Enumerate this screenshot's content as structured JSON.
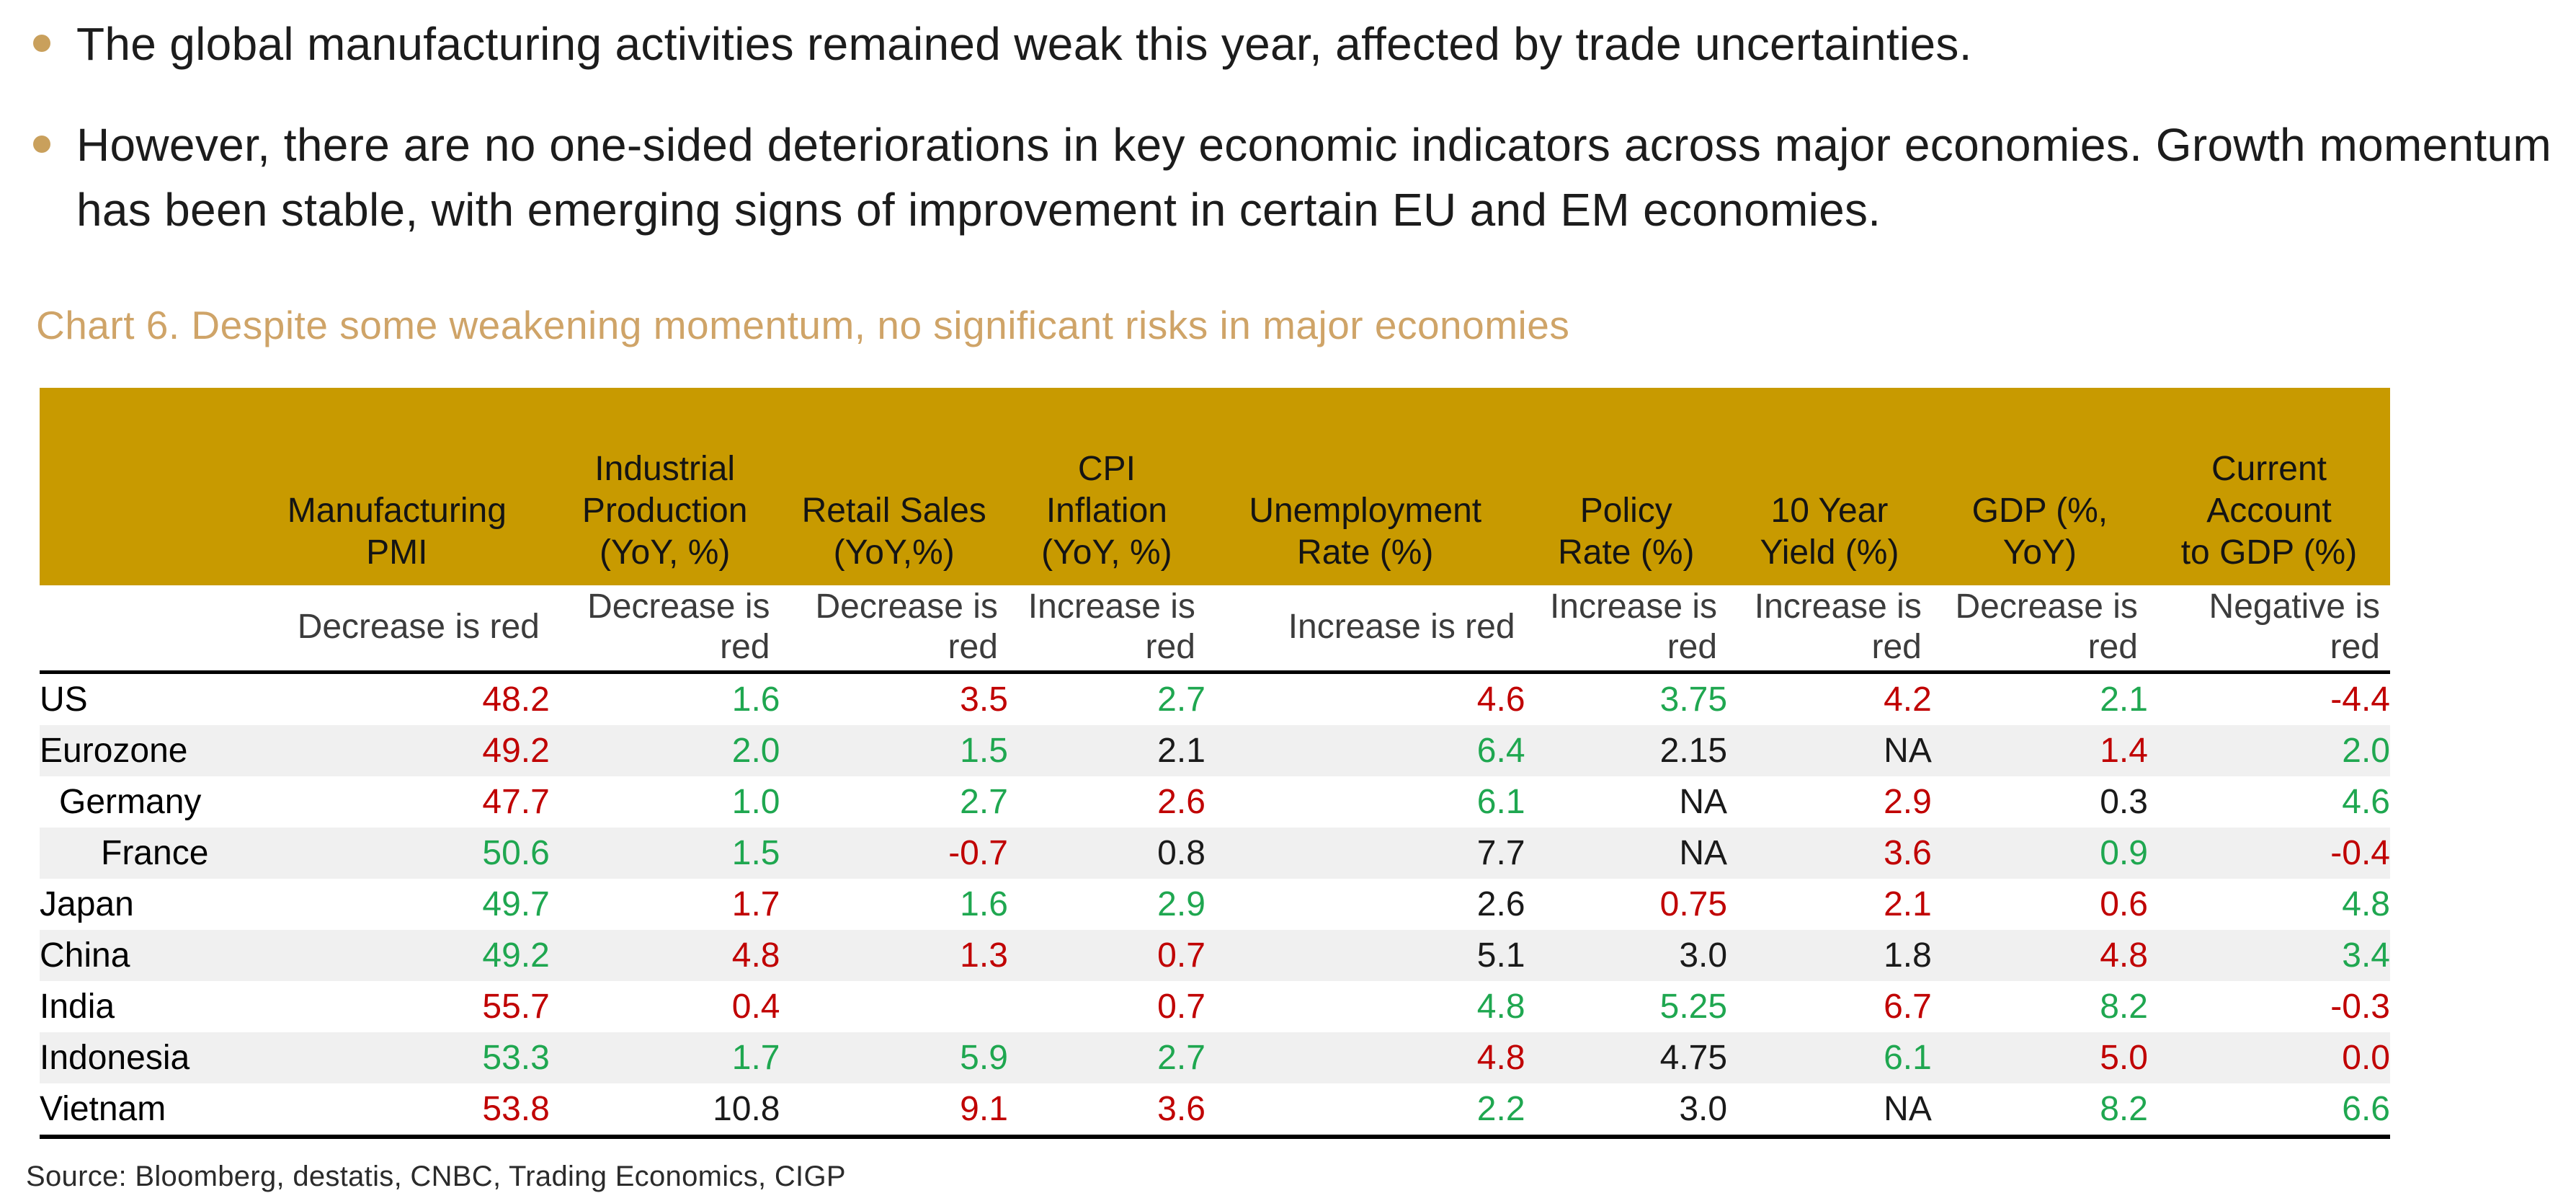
{
  "colors": {
    "red": "#C00000",
    "green": "#1FA750",
    "gold": "#C89A00",
    "tan_title": "#CFA468",
    "tan_bullet": "#C9A05C",
    "stripe": "#F0F0F0"
  },
  "bullets": [
    "The global manufacturing activities remained weak this year, affected by trade uncertainties.",
    "However, there are no one-sided deteriorations in key economic indicators across major economies. Growth momentum has been stable, with emerging signs of improvement in certain EU and EM economies."
  ],
  "chart_title": "Chart 6. Despite some weakening momentum, no significant risks in major economies",
  "source": "Source: Bloomberg, destatis, CNBC, Trading Economics, CIGP",
  "table": {
    "columns": [
      {
        "header": "",
        "sub": ""
      },
      {
        "header": "Manufacturing\nPMI",
        "sub": "Decrease is red"
      },
      {
        "header": "Industrial\nProduction\n(YoY, %)",
        "sub": "Decrease is\nred"
      },
      {
        "header": "Retail Sales\n(YoY,%)",
        "sub": "Decrease is\nred"
      },
      {
        "header": "CPI\nInflation\n(YoY, %)",
        "sub": "Increase is\nred"
      },
      {
        "header": "Unemployment\nRate (%)",
        "sub": "Increase is red"
      },
      {
        "header": "Policy\nRate (%)",
        "sub": "Increase is\nred"
      },
      {
        "header": "10 Year\nYield (%)",
        "sub": "Increase is\nred"
      },
      {
        "header": "GDP (%,\nYoY)",
        "sub": "Decrease is\nred"
      },
      {
        "header": "Current\nAccount\nto GDP (%)",
        "sub": "Negative is\nred"
      }
    ],
    "rows": [
      {
        "name": "US",
        "indent": 0,
        "stripe": false,
        "values": [
          [
            "48.2",
            "r"
          ],
          [
            "1.6",
            "g"
          ],
          [
            "3.5",
            "r"
          ],
          [
            "2.7",
            "g"
          ],
          [
            "4.6",
            "r"
          ],
          [
            "3.75",
            "g"
          ],
          [
            "4.2",
            "r"
          ],
          [
            "2.1",
            "g"
          ],
          [
            "-4.4",
            "r"
          ]
        ]
      },
      {
        "name": "Eurozone",
        "indent": 0,
        "stripe": true,
        "values": [
          [
            "49.2",
            "r"
          ],
          [
            "2.0",
            "g"
          ],
          [
            "1.5",
            "g"
          ],
          [
            "2.1",
            "k"
          ],
          [
            "6.4",
            "g"
          ],
          [
            "2.15",
            "k"
          ],
          [
            "NA",
            "k"
          ],
          [
            "1.4",
            "r"
          ],
          [
            "2.0",
            "g"
          ]
        ]
      },
      {
        "name": "Germany",
        "indent": 1,
        "stripe": false,
        "values": [
          [
            "47.7",
            "r"
          ],
          [
            "1.0",
            "g"
          ],
          [
            "2.7",
            "g"
          ],
          [
            "2.6",
            "r"
          ],
          [
            "6.1",
            "g"
          ],
          [
            "NA",
            "k"
          ],
          [
            "2.9",
            "r"
          ],
          [
            "0.3",
            "k"
          ],
          [
            "4.6",
            "g"
          ]
        ]
      },
      {
        "name": "France",
        "indent": 2,
        "stripe": true,
        "values": [
          [
            "50.6",
            "g"
          ],
          [
            "1.5",
            "g"
          ],
          [
            "-0.7",
            "r"
          ],
          [
            "0.8",
            "k"
          ],
          [
            "7.7",
            "k"
          ],
          [
            "NA",
            "k"
          ],
          [
            "3.6",
            "r"
          ],
          [
            "0.9",
            "g"
          ],
          [
            "-0.4",
            "r"
          ]
        ]
      },
      {
        "name": "Japan",
        "indent": 0,
        "stripe": false,
        "values": [
          [
            "49.7",
            "g"
          ],
          [
            "1.7",
            "r"
          ],
          [
            "1.6",
            "g"
          ],
          [
            "2.9",
            "g"
          ],
          [
            "2.6",
            "k"
          ],
          [
            "0.75",
            "r"
          ],
          [
            "2.1",
            "r"
          ],
          [
            "0.6",
            "r"
          ],
          [
            "4.8",
            "g"
          ]
        ]
      },
      {
        "name": "China",
        "indent": 0,
        "stripe": true,
        "values": [
          [
            "49.2",
            "g"
          ],
          [
            "4.8",
            "r"
          ],
          [
            "1.3",
            "r"
          ],
          [
            "0.7",
            "r"
          ],
          [
            "5.1",
            "k"
          ],
          [
            "3.0",
            "k"
          ],
          [
            "1.8",
            "k"
          ],
          [
            "4.8",
            "r"
          ],
          [
            "3.4",
            "g"
          ]
        ]
      },
      {
        "name": "India",
        "indent": 0,
        "stripe": false,
        "values": [
          [
            "55.7",
            "r"
          ],
          [
            "0.4",
            "r"
          ],
          [
            "",
            "k"
          ],
          [
            "0.7",
            "r"
          ],
          [
            "4.8",
            "g"
          ],
          [
            "5.25",
            "g"
          ],
          [
            "6.7",
            "r"
          ],
          [
            "8.2",
            "g"
          ],
          [
            "-0.3",
            "r"
          ]
        ]
      },
      {
        "name": "Indonesia",
        "indent": 0,
        "stripe": true,
        "values": [
          [
            "53.3",
            "g"
          ],
          [
            "1.7",
            "g"
          ],
          [
            "5.9",
            "g"
          ],
          [
            "2.7",
            "g"
          ],
          [
            "4.8",
            "r"
          ],
          [
            "4.75",
            "k"
          ],
          [
            "6.1",
            "g"
          ],
          [
            "5.0",
            "r"
          ],
          [
            "0.0",
            "r"
          ]
        ]
      },
      {
        "name": "Vietnam",
        "indent": 0,
        "stripe": false,
        "values": [
          [
            "53.8",
            "r"
          ],
          [
            "10.8",
            "k"
          ],
          [
            "9.1",
            "r"
          ],
          [
            "3.6",
            "r"
          ],
          [
            "2.2",
            "g"
          ],
          [
            "3.0",
            "k"
          ],
          [
            "NA",
            "k"
          ],
          [
            "8.2",
            "g"
          ],
          [
            "6.6",
            "g"
          ]
        ]
      }
    ]
  }
}
